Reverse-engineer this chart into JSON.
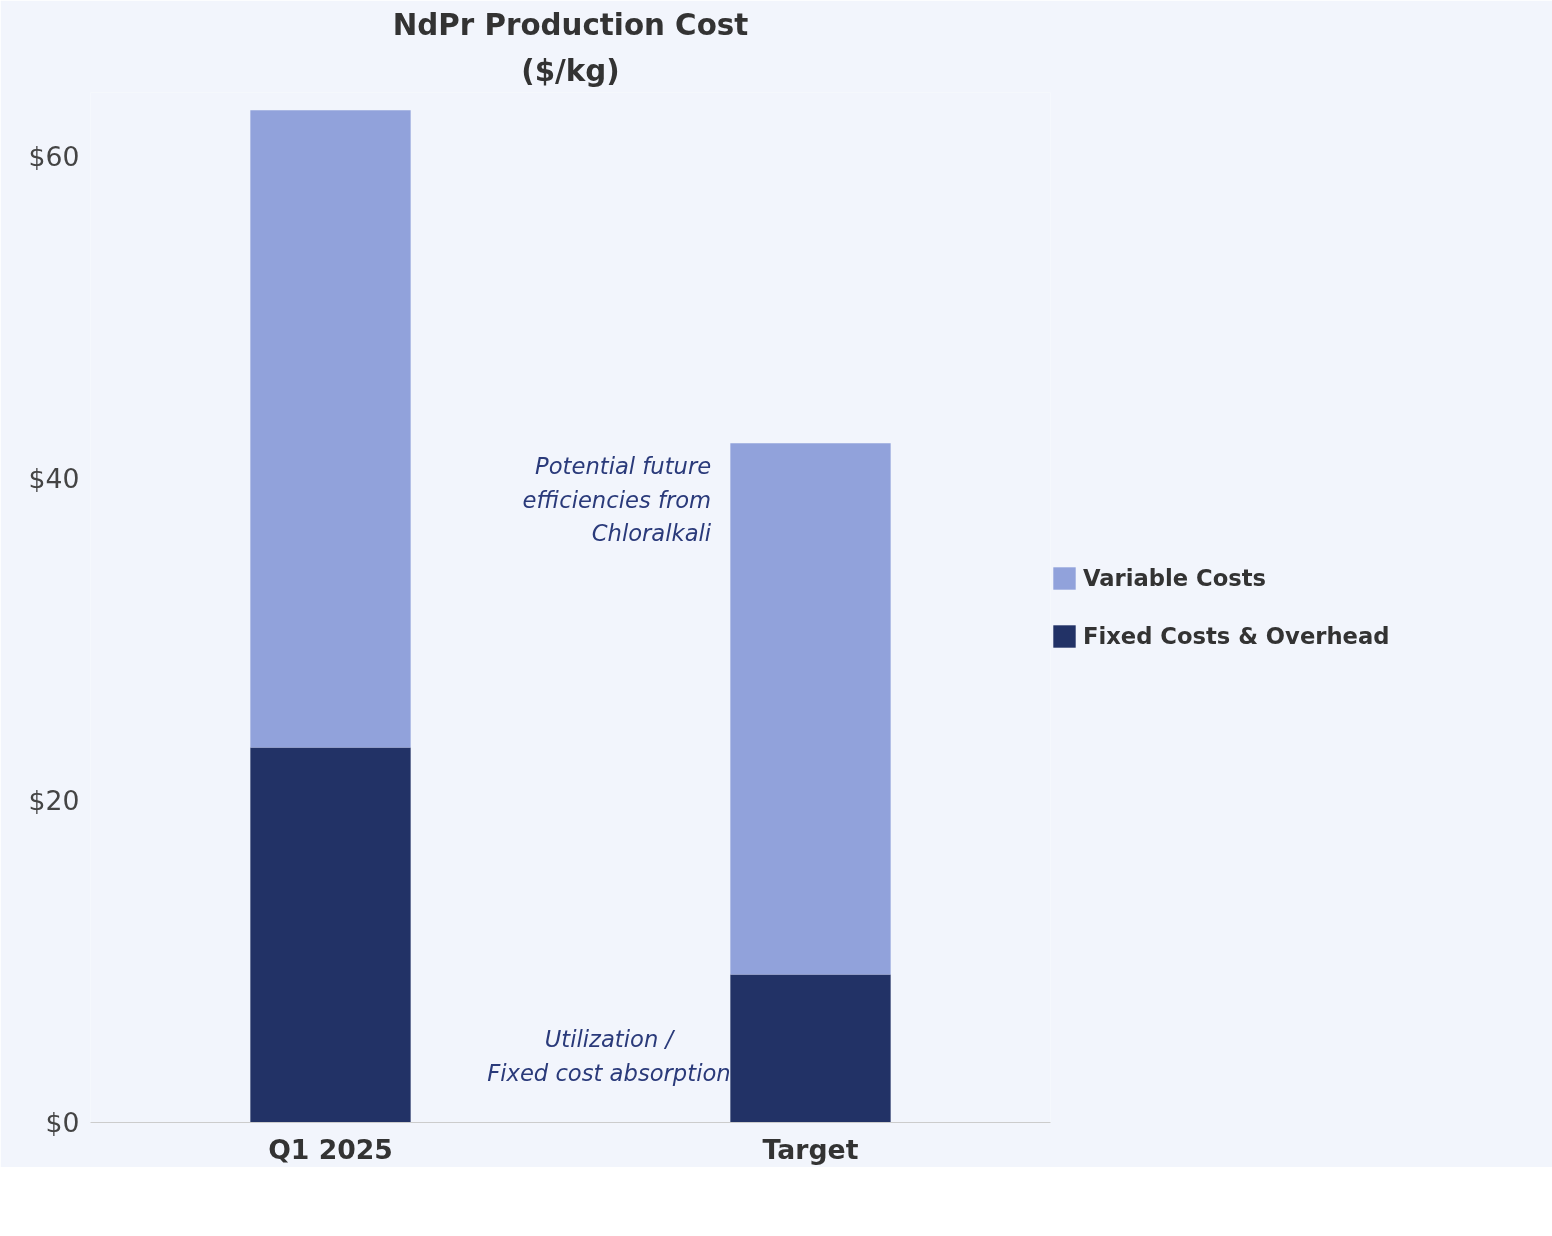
{
  "chart_data": {
    "type": "bar",
    "title": "NdPr Production Cost",
    "subtitle": "($/kg)",
    "categories": [
      "Q1 2025",
      "Target"
    ],
    "stacked": true,
    "series": [
      {
        "name": "Fixed Costs & Overhead",
        "color": "#223266",
        "values": [
          23.3,
          9.2
        ]
      },
      {
        "name": "Variable Costs",
        "color": "#91a2db",
        "values": [
          39.6,
          33.0
        ]
      }
    ],
    "ylim": [
      0,
      64
    ],
    "yticks": [
      {
        "value": 0,
        "label": "$0"
      },
      {
        "value": 20,
        "label": "$20"
      },
      {
        "value": 40,
        "label": "$40"
      },
      {
        "value": 60,
        "label": "$60"
      }
    ],
    "grid": false,
    "legend": "right",
    "annotations": [
      "Potential future\nefficiencies from\nChloralkali",
      "Utilization /\nFixed cost absorption"
    ]
  }
}
